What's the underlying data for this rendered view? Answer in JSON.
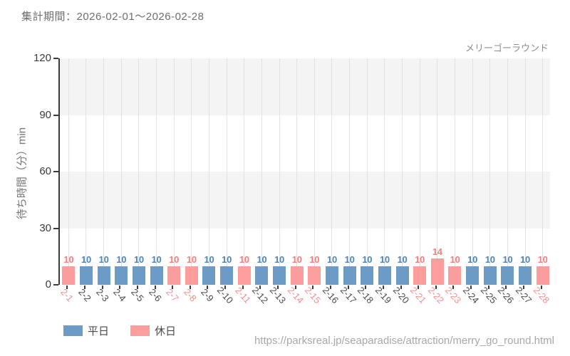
{
  "header": {
    "period": "集計期間：2026-02-01〜2026-02-28"
  },
  "footer": {
    "url": "https://parksreal.jp/seaparadise/attraction/merry_go_round.html"
  },
  "chart_data": {
    "type": "bar",
    "title": "メリーゴーラウンド",
    "ylabel": "待ち時間（分）min",
    "ylim": [
      0,
      120
    ],
    "yticks": [
      0,
      30,
      60,
      90,
      120
    ],
    "grid": "vertical",
    "legend_position": "bottom-left",
    "categories": [
      "2-1",
      "2-2",
      "2-3",
      "2-4",
      "2-5",
      "2-6",
      "2-7",
      "2-8",
      "2-9",
      "2-10",
      "2-11",
      "2-12",
      "2-13",
      "2-14",
      "2-15",
      "2-16",
      "2-17",
      "2-18",
      "2-19",
      "2-20",
      "2-21",
      "2-22",
      "2-23",
      "2-24",
      "2-25",
      "2-26",
      "2-27",
      "2-28"
    ],
    "values": [
      10,
      10,
      10,
      10,
      10,
      10,
      10,
      10,
      10,
      10,
      10,
      10,
      10,
      10,
      10,
      10,
      10,
      10,
      10,
      10,
      10,
      14,
      10,
      10,
      10,
      10,
      10,
      10
    ],
    "day_types": [
      "holiday",
      "weekday",
      "weekday",
      "weekday",
      "weekday",
      "weekday",
      "holiday",
      "holiday",
      "weekday",
      "weekday",
      "holiday",
      "weekday",
      "weekday",
      "holiday",
      "holiday",
      "weekday",
      "weekday",
      "weekday",
      "weekday",
      "weekday",
      "holiday",
      "holiday",
      "holiday",
      "weekday",
      "weekday",
      "weekday",
      "weekday",
      "holiday"
    ],
    "legend": [
      {
        "label": "平日",
        "type": "weekday",
        "color": "#6c9bc5"
      },
      {
        "label": "休日",
        "type": "holiday",
        "color": "#fc9d9d"
      }
    ],
    "colors": {
      "weekday_bar": "#6c9bc5",
      "holiday_bar": "#fc9d9d",
      "weekday_value_label": "#4d84b5",
      "holiday_value_label": "#f57d7d",
      "weekday_tick_label": "#4a4a4a",
      "holiday_tick_label": "#f58f8f",
      "band": "#f4f4f4",
      "gridline": "#e2e2e2",
      "axis": "#3c3c3c"
    }
  }
}
